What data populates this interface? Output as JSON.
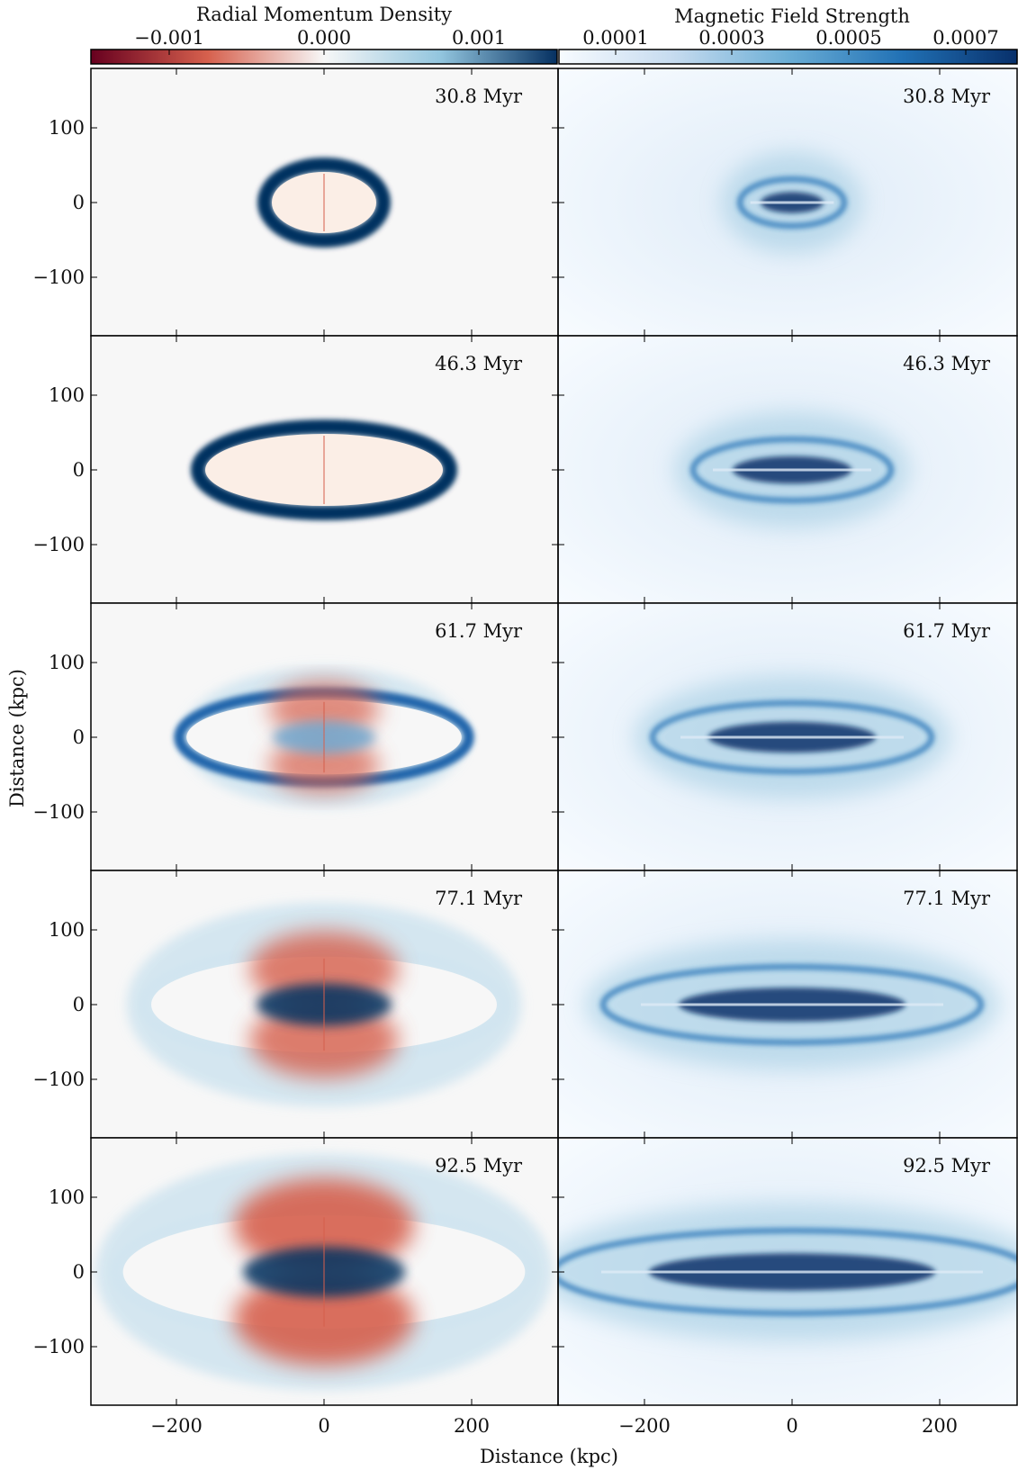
{
  "figure": {
    "colorbars": [
      {
        "label": "Radial Momentum Density",
        "ticks": [
          "−0.001",
          "0.000",
          "0.001"
        ],
        "colors": [
          "#67001f",
          "#d6604d",
          "#f7f7f7",
          "#92c5de",
          "#053061"
        ]
      },
      {
        "label": "Magnetic Field Strength",
        "ticks": [
          "0.0001",
          "0.0003",
          "0.0005",
          "0.0007"
        ],
        "colors": [
          "#f7fbff",
          "#c6dbef",
          "#6baed6",
          "#2171b5",
          "#08306b"
        ]
      }
    ],
    "x_axis_label": "Distance (kpc)",
    "y_axis_label": "Distance (kpc)",
    "x_tick_labels": [
      "−200",
      "0",
      "200"
    ],
    "y_tick_labels": [
      "100",
      "0",
      "−100"
    ],
    "panels": [
      {
        "time": "30.8 Myr",
        "scale": 0.42,
        "inner": 0.72,
        "red": 0.0
      },
      {
        "time": "46.3 Myr",
        "scale": 0.62,
        "inner": 0.78,
        "red": 0.0
      },
      {
        "time": "61.7 Myr",
        "scale": 0.82,
        "inner": 0.8,
        "red": 0.45
      },
      {
        "time": "77.1 Myr",
        "scale": 1.02,
        "inner": 0.82,
        "red": 0.75
      },
      {
        "time": "92.5 Myr",
        "scale": 1.18,
        "inner": 0.8,
        "red": 1.0
      }
    ]
  }
}
